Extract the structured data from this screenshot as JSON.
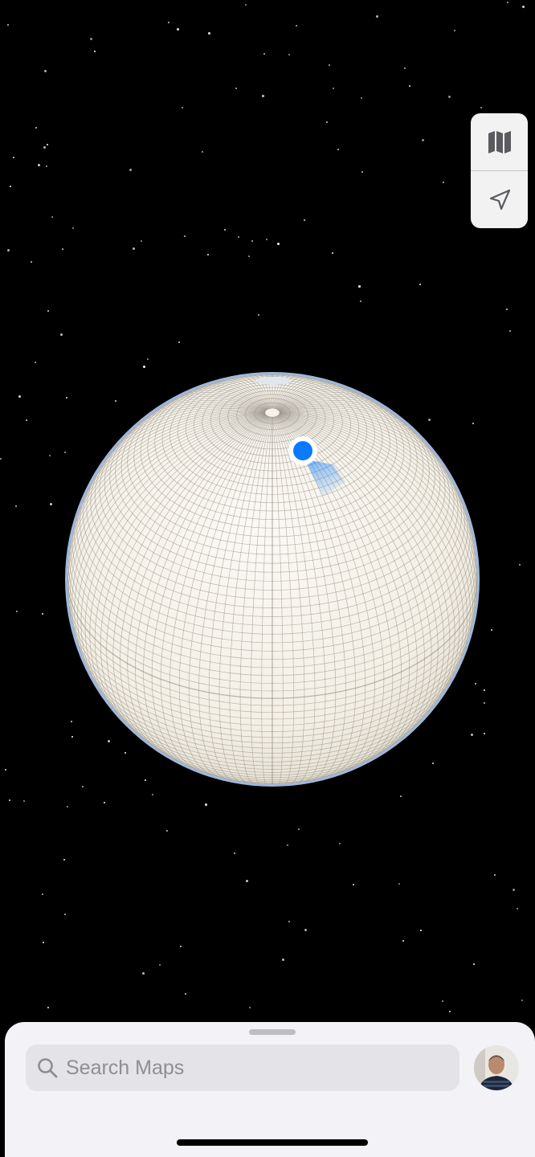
{
  "app": "Maps",
  "controls": {
    "map_mode_icon": "map-icon",
    "location_icon": "location-arrow-icon"
  },
  "search": {
    "placeholder": "Search Maps",
    "icon": "magnifying-glass-icon"
  },
  "profile": {
    "icon": "avatar"
  },
  "colors": {
    "accent": "#0a7aff",
    "globe_fill": "#f5f2ea",
    "globe_grid": "#8a8478",
    "globe_edge": "#9cb8dd",
    "sheet": "#f2f2f7",
    "search_field": "#e3e3e8"
  }
}
